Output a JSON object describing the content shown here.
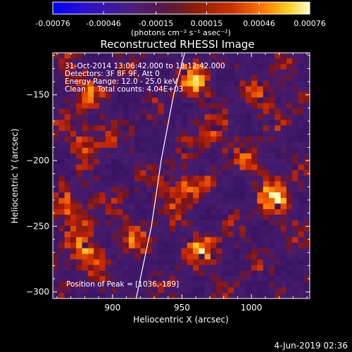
{
  "chart_data": {
    "type": "heatmap",
    "title": "Reconstructed RHESSI Image",
    "xlabel": "Heliocentric X (arcsec)",
    "ylabel": "Heliocentric Y (arcsec)",
    "xlim": [
      857,
      1042
    ],
    "ylim": [
      -305,
      -118
    ],
    "x_ticks": [
      900,
      950,
      1000
    ],
    "y_ticks": [
      -150,
      -200,
      -250,
      -300
    ],
    "grid_cells": 44,
    "limb_curve": [
      [
        952,
        -118
      ],
      [
        944,
        -150
      ],
      [
        935,
        -200
      ],
      [
        928,
        -250
      ],
      [
        920,
        -290
      ],
      [
        917,
        -305
      ]
    ],
    "colorbar": {
      "range": [
        -0.00076,
        0.00076
      ],
      "tick_values": [
        -0.00076,
        -0.00046,
        -0.00015,
        0.00015,
        0.00046,
        0.00076
      ],
      "tick_labels": [
        "-0.00076",
        "-0.00046",
        "-0.00015",
        "0.00015",
        "0.00046",
        "0.00076"
      ],
      "units": "(photons cm⁻² s⁻¹ asec⁻²)",
      "colors": [
        "#0000ff",
        "#3020c0",
        "#502070",
        "#802010",
        "#c02000",
        "#ff6000",
        "#ffc000",
        "#ffffa0"
      ]
    },
    "annotations": [
      "31-Oct-2014 13:06:42.000 to 13:12:42.000",
      "Detectors: 3F 8F 9F, Att 0",
      "Energy Range: 12.0 - 25.0 keV",
      "Clean     Total counts: 4.04E+03"
    ],
    "peak_label": "Position of Peak = [1036,-189]"
  },
  "footer": {
    "date": "4-Jun-2019 02:36"
  }
}
